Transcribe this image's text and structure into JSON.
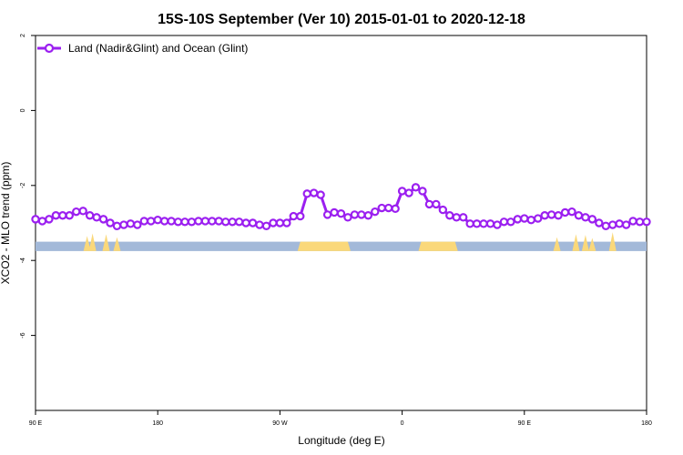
{
  "chart_data": {
    "type": "line",
    "title": "15S-10S September (Ver 10)   2015-01-01 to 2020-12-18",
    "xlabel": "Longitude (deg E)",
    "ylabel": "XCO2 - MLO trend (ppm)",
    "xlim": [
      90,
      540
    ],
    "ylim": [
      -8,
      2
    ],
    "x_ticks": [
      {
        "value": 90,
        "label": "90 E"
      },
      {
        "value": 180,
        "label": "180"
      },
      {
        "value": 270,
        "label": "90 W"
      },
      {
        "value": 360,
        "label": "0"
      },
      {
        "value": 450,
        "label": "90 E"
      },
      {
        "value": 540,
        "label": "180"
      }
    ],
    "y_ticks": [
      2,
      0,
      -2,
      -4,
      -6
    ],
    "legend": {
      "position": "top-left",
      "entries": [
        "Land (Nadir&Glint) and Ocean (Glint)"
      ]
    },
    "series": [
      {
        "name": "Land (Nadir&Glint) and Ocean (Glint)",
        "color": "#9b1ff0",
        "x": [
          90,
          95,
          100,
          105,
          110,
          115,
          120,
          125,
          130,
          135,
          140,
          145,
          150,
          155,
          160,
          165,
          170,
          175,
          180,
          185,
          190,
          195,
          200,
          205,
          210,
          215,
          220,
          225,
          230,
          235,
          240,
          245,
          250,
          255,
          260,
          265,
          270,
          275,
          280,
          285,
          290,
          295,
          300,
          305,
          310,
          315,
          320,
          325,
          330,
          335,
          340,
          345,
          350,
          355,
          360,
          365,
          370,
          375,
          380,
          385,
          390,
          395,
          400,
          405,
          410,
          415,
          420,
          425,
          430,
          435,
          440,
          445,
          450,
          455,
          460,
          465,
          470,
          475,
          480,
          485,
          490,
          495,
          500,
          505,
          510,
          515,
          520,
          525,
          530,
          535,
          540
        ],
        "values": [
          -2.9,
          -2.95,
          -2.9,
          -2.8,
          -2.8,
          -2.8,
          -2.7,
          -2.68,
          -2.8,
          -2.85,
          -2.9,
          -3.0,
          -3.08,
          -3.05,
          -3.02,
          -3.05,
          -2.95,
          -2.95,
          -2.92,
          -2.95,
          -2.95,
          -2.97,
          -2.97,
          -2.97,
          -2.95,
          -2.95,
          -2.95,
          -2.95,
          -2.97,
          -2.97,
          -2.97,
          -3.0,
          -3.0,
          -3.05,
          -3.08,
          -3.0,
          -3.0,
          -3.0,
          -2.82,
          -2.82,
          -2.22,
          -2.2,
          -2.25,
          -2.78,
          -2.72,
          -2.75,
          -2.85,
          -2.78,
          -2.78,
          -2.8,
          -2.7,
          -2.6,
          -2.6,
          -2.62,
          -2.15,
          -2.2,
          -2.05,
          -2.15,
          -2.5,
          -2.5,
          -2.65,
          -2.8,
          -2.85,
          -2.85,
          -3.02,
          -3.02,
          -3.02,
          -3.02,
          -3.05,
          -2.97,
          -2.97,
          -2.9,
          -2.88,
          -2.92,
          -2.88,
          -2.8,
          -2.78,
          -2.8,
          -2.72,
          -2.7,
          -2.8,
          -2.85,
          -2.9,
          -3.0,
          -3.08,
          -3.05,
          -3.02,
          -3.05,
          -2.95,
          -2.97,
          -2.97
        ]
      }
    ],
    "surface_band": {
      "y_range": [
        -3.75,
        -3.5
      ],
      "ocean_color": "#a3b9d9",
      "land_color": "#fad87a",
      "land_segments": [
        [
          283,
          322
        ],
        [
          372,
          401
        ]
      ],
      "land_spikes": [
        [
          128,
          0.15
        ],
        [
          132,
          0.22
        ],
        [
          142,
          0.2
        ],
        [
          150,
          0.12
        ],
        [
          474,
          0.12
        ],
        [
          488,
          0.2
        ],
        [
          495,
          0.18
        ],
        [
          500,
          0.1
        ],
        [
          515,
          0.25
        ]
      ]
    }
  }
}
